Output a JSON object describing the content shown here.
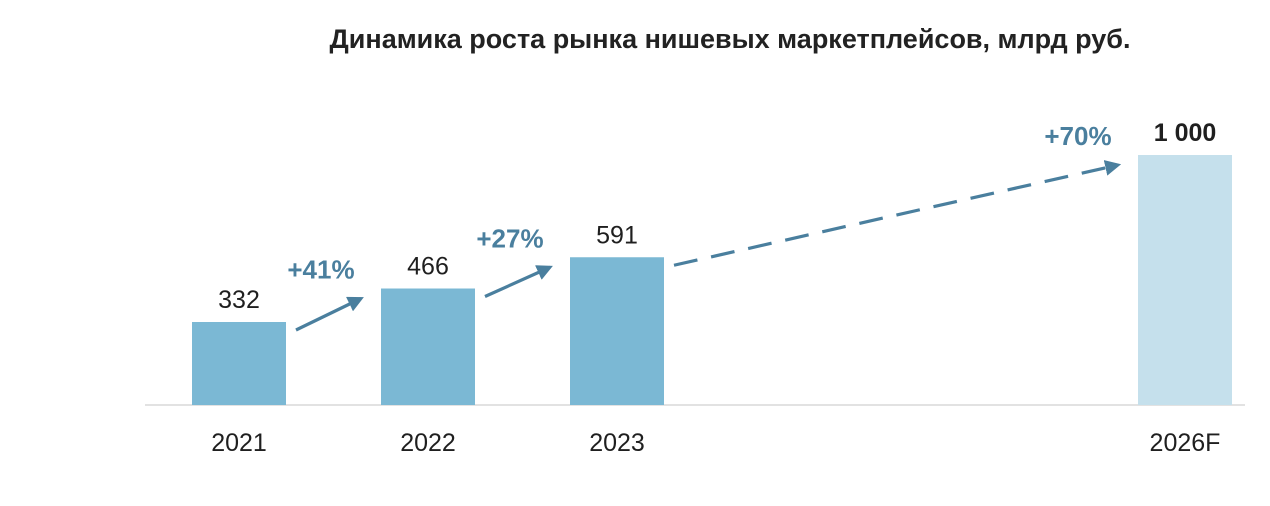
{
  "chart_data": {
    "type": "bar",
    "title": "Динамика роста рынка нишевых маркетплейсов, млрд руб.",
    "categories": [
      "2021",
      "2022",
      "2023",
      "2026F"
    ],
    "values": [
      332,
      466,
      591,
      1000
    ],
    "value_labels": [
      "332",
      "466",
      "591",
      "1 000"
    ],
    "forecast": [
      false,
      false,
      false,
      true
    ],
    "growth": [
      {
        "from": "2021",
        "to": "2022",
        "label": "+41%",
        "style": "solid"
      },
      {
        "from": "2022",
        "to": "2023",
        "label": "+27%",
        "style": "solid"
      },
      {
        "from": "2023",
        "to": "2026F",
        "label": "+70%",
        "style": "dashed"
      }
    ],
    "xlabel": "",
    "ylabel": "",
    "ylim": [
      0,
      1000
    ],
    "grid": false,
    "legend": "none",
    "colors": {
      "bar": "#7bb8d4",
      "forecast_bar": "#c5e0ec",
      "arrow": "#4a7f9e",
      "growth_text": "#4a7f9e",
      "axis": "#d9d9d9",
      "text": "#1f1f1f"
    }
  }
}
